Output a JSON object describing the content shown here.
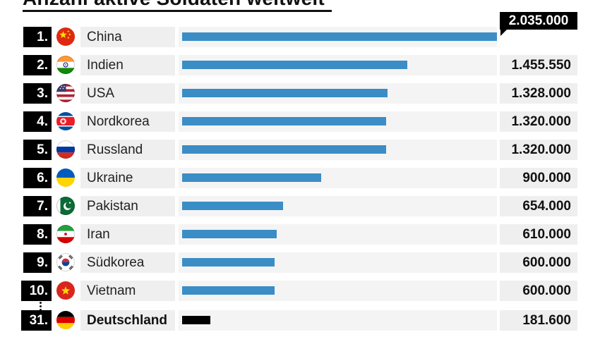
{
  "title": {
    "text": "Anzahl aktive Soldaten weltweit"
  },
  "colors": {
    "bar": "#3b8dc5",
    "highlight_bar": "#000000",
    "badge_bg": "#000000",
    "badge_text": "#ffffff",
    "row_bg": "#efefef",
    "track_bg": "#f4f4f4",
    "callout_bg": "#000000",
    "callout_text": "#ffffff"
  },
  "rows": [
    {
      "rank": "1.",
      "country": "China",
      "flag": "china",
      "value": 2035000,
      "value_label": "2.035.000",
      "highlight": false,
      "value_style": "callout"
    },
    {
      "rank": "2.",
      "country": "Indien",
      "flag": "indien",
      "value": 1455550,
      "value_label": "1.455.550",
      "highlight": false,
      "value_style": "cell"
    },
    {
      "rank": "3.",
      "country": "USA",
      "flag": "usa",
      "value": 1328000,
      "value_label": "1.328.000",
      "highlight": false,
      "value_style": "cell"
    },
    {
      "rank": "4.",
      "country": "Nordkorea",
      "flag": "nordkorea",
      "value": 1320000,
      "value_label": "1.320.000",
      "highlight": false,
      "value_style": "cell"
    },
    {
      "rank": "5.",
      "country": "Russland",
      "flag": "russland",
      "value": 1320000,
      "value_label": "1.320.000",
      "highlight": false,
      "value_style": "cell"
    },
    {
      "rank": "6.",
      "country": "Ukraine",
      "flag": "ukraine",
      "value": 900000,
      "value_label": "900.000",
      "highlight": false,
      "value_style": "cell"
    },
    {
      "rank": "7.",
      "country": "Pakistan",
      "flag": "pakistan",
      "value": 654000,
      "value_label": "654.000",
      "highlight": false,
      "value_style": "cell"
    },
    {
      "rank": "8.",
      "country": "Iran",
      "flag": "iran",
      "value": 610000,
      "value_label": "610.000",
      "highlight": false,
      "value_style": "cell"
    },
    {
      "rank": "9.",
      "country": "Südkorea",
      "flag": "suedkorea",
      "value": 600000,
      "value_label": "600.000",
      "highlight": false,
      "value_style": "cell"
    },
    {
      "rank": "10.",
      "country": "Vietnam",
      "flag": "vietnam",
      "value": 600000,
      "value_label": "600.000",
      "highlight": false,
      "value_style": "cell"
    },
    {
      "rank": "31.",
      "country": "Deutschland",
      "flag": "deutschland",
      "value": 181600,
      "value_label": "181.600",
      "highlight": true,
      "value_style": "cell"
    }
  ],
  "chart_data": {
    "type": "bar",
    "orientation": "horizontal",
    "title": "Anzahl aktive Soldaten weltweit",
    "categories": [
      "China",
      "Indien",
      "USA",
      "Nordkorea",
      "Russland",
      "Ukraine",
      "Pakistan",
      "Iran",
      "Südkorea",
      "Vietnam",
      "Deutschland"
    ],
    "ranks": [
      "1.",
      "2.",
      "3.",
      "4.",
      "5.",
      "6.",
      "7.",
      "8.",
      "9.",
      "10.",
      "31."
    ],
    "values": [
      2035000,
      1455550,
      1328000,
      1320000,
      1320000,
      900000,
      654000,
      610000,
      600000,
      600000,
      181600
    ],
    "value_labels": [
      "2.035.000",
      "1.455.550",
      "1.328.000",
      "1.320.000",
      "1.320.000",
      "900.000",
      "654.000",
      "610.000",
      "600.000",
      "600.000",
      "181.600"
    ],
    "xlim": [
      0,
      2035000
    ],
    "bar_color": "#3b8dc5",
    "highlight": {
      "category": "Deutschland",
      "bar_color": "#000000"
    },
    "grid": false,
    "legend": false
  }
}
